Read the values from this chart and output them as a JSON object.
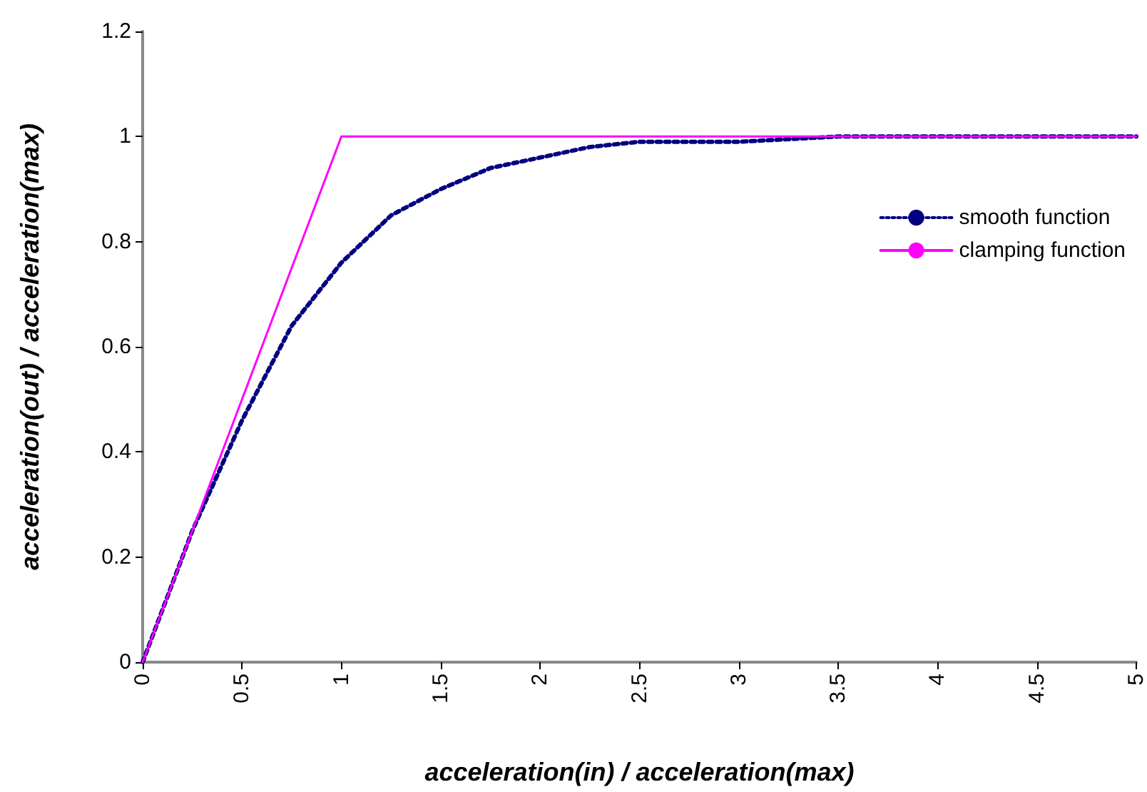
{
  "chart_data": {
    "type": "line",
    "xlabel": "acceleration(in) / acceleration(max)",
    "ylabel": "acceleration(out) / acceleration(max)",
    "xlim": [
      0,
      5
    ],
    "xticks": [
      0,
      0.5,
      1,
      1.5,
      2,
      2.5,
      3,
      3.5,
      4,
      4.5,
      5
    ],
    "ylim": [
      0,
      1.2
    ],
    "yticks": [
      0,
      0.2,
      0.4,
      0.6,
      0.8,
      1,
      1.2
    ],
    "grid": false,
    "legend": "right",
    "marker": "none",
    "series": [
      {
        "name": "smooth function",
        "color": "#000080",
        "line_style": "dotted",
        "x": [
          0,
          0.25,
          0.5,
          0.75,
          1,
          1.25,
          1.5,
          1.75,
          2,
          2.25,
          2.5,
          3,
          3.5,
          4,
          4.5,
          5
        ],
        "values": [
          0,
          0.25,
          0.46,
          0.64,
          0.76,
          0.85,
          0.9,
          0.94,
          0.96,
          0.98,
          0.99,
          0.99,
          1,
          1,
          1,
          1
        ]
      },
      {
        "name": "clamping function",
        "color": "#ff00ff",
        "line_style": "solid",
        "x": [
          0,
          1,
          5
        ],
        "values": [
          0,
          1,
          1
        ]
      }
    ]
  }
}
